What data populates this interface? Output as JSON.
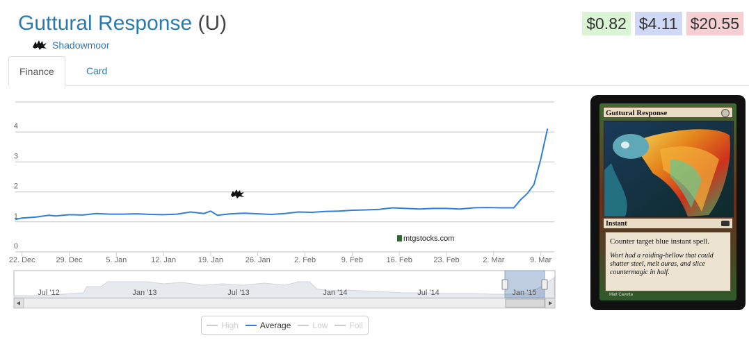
{
  "card": {
    "name": "Guttural Response",
    "rarity": "(U)",
    "set_name": "Shadowmoor",
    "set_icon": "shadowmoor-set-icon"
  },
  "prices": {
    "low": "$0.82",
    "average": "$4.11",
    "high": "$20.55",
    "colors": {
      "low": "#d9f5d4",
      "average": "#cfd9f5",
      "high": "#f5cfd2"
    }
  },
  "tabs": [
    {
      "label": "Finance",
      "active": true
    },
    {
      "label": "Card",
      "active": false
    }
  ],
  "watermark": "mtgstocks.com",
  "legend": [
    {
      "label": "High",
      "active": false
    },
    {
      "label": "Average",
      "active": true
    },
    {
      "label": "Low",
      "active": false
    },
    {
      "label": "Foil",
      "active": false
    }
  ],
  "card_image": {
    "title": "Guttural Response",
    "type_line": "Instant",
    "rules_text": "Counter target blue instant spell.",
    "flavor_text": "Wort had a raiding-bellow that could shatter steel, melt auras, and slice countermagic in half.",
    "artist": "Matt Cavotta"
  },
  "chart_data": {
    "type": "line",
    "title": "",
    "xlabel": "",
    "ylabel": "",
    "ylim": [
      0,
      5
    ],
    "yticks": [
      0,
      1,
      2,
      3,
      4
    ],
    "xlim": [
      "2014-12-21",
      "2015-03-11"
    ],
    "xticks": [
      {
        "date": "2014-12-22",
        "label": "22. Dec"
      },
      {
        "date": "2014-12-29",
        "label": "29. Dec"
      },
      {
        "date": "2015-01-05",
        "label": "5. Jan"
      },
      {
        "date": "2015-01-12",
        "label": "12. Jan"
      },
      {
        "date": "2015-01-19",
        "label": "19. Jan"
      },
      {
        "date": "2015-01-26",
        "label": "26. Jan"
      },
      {
        "date": "2015-02-02",
        "label": "2. Feb"
      },
      {
        "date": "2015-02-09",
        "label": "9. Feb"
      },
      {
        "date": "2015-02-16",
        "label": "16. Feb"
      },
      {
        "date": "2015-02-23",
        "label": "23. Feb"
      },
      {
        "date": "2015-03-02",
        "label": "2. Mar"
      },
      {
        "date": "2015-03-09",
        "label": "9. Mar"
      }
    ],
    "grid": true,
    "series": [
      {
        "name": "Average",
        "color": "#2f7ed8",
        "points": [
          [
            "2014-12-21",
            1.08
          ],
          [
            "2014-12-22",
            1.13
          ],
          [
            "2014-12-24",
            1.16
          ],
          [
            "2014-12-26",
            1.22
          ],
          [
            "2014-12-27",
            1.2
          ],
          [
            "2014-12-29",
            1.24
          ],
          [
            "2014-12-31",
            1.23
          ],
          [
            "2015-01-02",
            1.28
          ],
          [
            "2015-01-04",
            1.26
          ],
          [
            "2015-01-06",
            1.26
          ],
          [
            "2015-01-08",
            1.27
          ],
          [
            "2015-01-10",
            1.25
          ],
          [
            "2015-01-12",
            1.24
          ],
          [
            "2015-01-14",
            1.26
          ],
          [
            "2015-01-16",
            1.33
          ],
          [
            "2015-01-18",
            1.28
          ],
          [
            "2015-01-19",
            1.36
          ],
          [
            "2015-01-20",
            1.22
          ],
          [
            "2015-01-22",
            1.27
          ],
          [
            "2015-01-24",
            1.29
          ],
          [
            "2015-01-26",
            1.27
          ],
          [
            "2015-01-28",
            1.25
          ],
          [
            "2015-01-30",
            1.28
          ],
          [
            "2015-02-01",
            1.33
          ],
          [
            "2015-02-03",
            1.32
          ],
          [
            "2015-02-05",
            1.35
          ],
          [
            "2015-02-07",
            1.36
          ],
          [
            "2015-02-09",
            1.39
          ],
          [
            "2015-02-11",
            1.4
          ],
          [
            "2015-02-13",
            1.42
          ],
          [
            "2015-02-15",
            1.47
          ],
          [
            "2015-02-17",
            1.45
          ],
          [
            "2015-02-19",
            1.43
          ],
          [
            "2015-02-21",
            1.45
          ],
          [
            "2015-02-23",
            1.45
          ],
          [
            "2015-02-25",
            1.43
          ],
          [
            "2015-02-27",
            1.47
          ],
          [
            "2015-03-01",
            1.48
          ],
          [
            "2015-03-03",
            1.47
          ],
          [
            "2015-03-05",
            1.47
          ],
          [
            "2015-03-06",
            1.74
          ],
          [
            "2015-03-07",
            1.95
          ],
          [
            "2015-03-08",
            2.25
          ],
          [
            "2015-03-09",
            3.1
          ],
          [
            "2015-03-10",
            4.11
          ]
        ]
      }
    ],
    "navigator": {
      "xticks": [
        "Jul '12",
        "Jan '13",
        "Jul '13",
        "Jan '14",
        "Jul '14",
        "Jan '15"
      ]
    }
  }
}
